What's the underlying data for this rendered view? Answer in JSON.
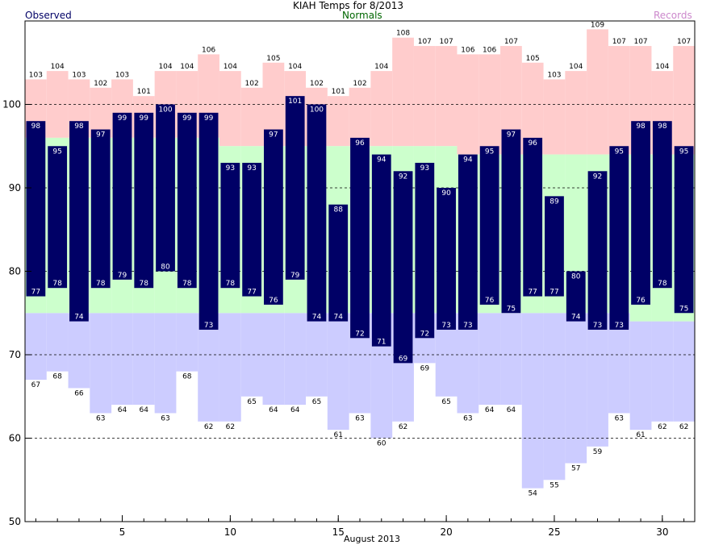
{
  "chart_data": {
    "type": "bar",
    "title": "KIAH Temps for 8/2013",
    "xlabel": "August 2013",
    "ylabel": "",
    "ylim": [
      50,
      110
    ],
    "xlim": [
      0.5,
      31.5
    ],
    "yticks": [
      50,
      60,
      70,
      80,
      90,
      100
    ],
    "xticks": [
      5,
      10,
      15,
      20,
      25,
      30
    ],
    "grid_y": [
      60,
      70,
      80,
      90,
      100
    ],
    "legend": {
      "observed": "Observed",
      "normals": "Normals",
      "records": "Records"
    },
    "colors": {
      "observed": "#000066",
      "normals": "#ccffcc",
      "record_high": "#ffcccc",
      "record_low": "#ccccff",
      "normals_legend_text": "#006600",
      "records_legend_text": "#cc88cc",
      "observed_legend_text": "#000066"
    },
    "days": [
      1,
      2,
      3,
      4,
      5,
      6,
      7,
      8,
      9,
      10,
      11,
      12,
      13,
      14,
      15,
      16,
      17,
      18,
      19,
      20,
      21,
      22,
      23,
      24,
      25,
      26,
      27,
      28,
      29,
      30,
      31
    ],
    "series": [
      {
        "name": "Observed",
        "key": "obs_high",
        "values": [
          98,
          95,
          98,
          97,
          99,
          99,
          100,
          99,
          99,
          93,
          93,
          97,
          101,
          100,
          88,
          96,
          94,
          92,
          93,
          90,
          94,
          95,
          97,
          96,
          89,
          80,
          92,
          95,
          98,
          98,
          95
        ]
      },
      {
        "name": "Observed",
        "key": "obs_low",
        "values": [
          77,
          78,
          74,
          78,
          79,
          78,
          80,
          78,
          73,
          78,
          77,
          76,
          79,
          74,
          74,
          72,
          71,
          69,
          72,
          73,
          73,
          76,
          75,
          77,
          77,
          74,
          73,
          73,
          76,
          78,
          75
        ]
      },
      {
        "name": "Records",
        "key": "record_high",
        "values": [
          103,
          104,
          103,
          102,
          103,
          101,
          104,
          104,
          106,
          104,
          102,
          105,
          104,
          102,
          101,
          102,
          104,
          108,
          107,
          107,
          106,
          106,
          107,
          105,
          103,
          104,
          109,
          107,
          107,
          104,
          107
        ]
      },
      {
        "name": "Records",
        "key": "record_low",
        "values": [
          67,
          68,
          66,
          63,
          64,
          64,
          63,
          68,
          62,
          62,
          65,
          64,
          64,
          65,
          61,
          63,
          60,
          62,
          69,
          65,
          63,
          64,
          64,
          54,
          55,
          57,
          59,
          63,
          61,
          62,
          62
        ]
      },
      {
        "name": "Normals",
        "key": "normal_high",
        "values": [
          96,
          96,
          96,
          96,
          96,
          96,
          96,
          96,
          96,
          95,
          95,
          95,
          95,
          95,
          95,
          95,
          95,
          95,
          95,
          95,
          94,
          94,
          94,
          94,
          94,
          94,
          94,
          94,
          94,
          94,
          94
        ]
      },
      {
        "name": "Normals",
        "key": "normal_low",
        "values": [
          75,
          75,
          75,
          75,
          75,
          75,
          75,
          75,
          75,
          75,
          75,
          75,
          75,
          75,
          75,
          75,
          75,
          75,
          75,
          75,
          75,
          75,
          75,
          75,
          75,
          75,
          75,
          75,
          74,
          74,
          74
        ]
      }
    ]
  }
}
